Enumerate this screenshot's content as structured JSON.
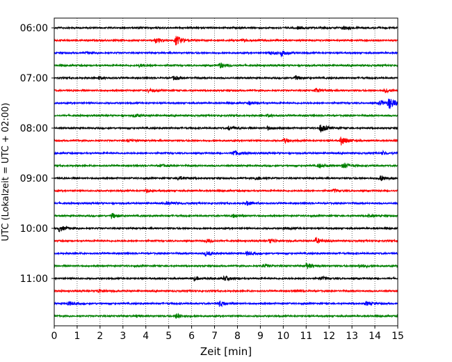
{
  "chart_data": {
    "type": "line",
    "title": "",
    "xlabel": "Zeit  [min]",
    "ylabel": "UTC (Lokalzeit = UTC + 02:00)",
    "xlim": [
      0,
      15
    ],
    "x_ticks": [
      0,
      1,
      2,
      3,
      4,
      5,
      6,
      7,
      8,
      9,
      10,
      11,
      12,
      13,
      14,
      15
    ],
    "y_ticks": [
      "06:00",
      "07:00",
      "08:00",
      "09:00",
      "10:00",
      "11:00"
    ],
    "grid": "vertical dotted",
    "trace_interval_min": 15,
    "trace_colors": [
      "#000000",
      "#ff0000",
      "#0000ff",
      "#008000"
    ],
    "traces": [
      {
        "start": "06:00",
        "events": [
          {
            "t": 12.6,
            "amp": 0.35
          },
          {
            "t": 10.6,
            "amp": 0.2
          }
        ]
      },
      {
        "start": "06:15",
        "events": [
          {
            "t": 5.3,
            "amp": 0.8
          },
          {
            "t": 4.4,
            "amp": 0.4
          },
          {
            "t": 8.2,
            "amp": 0.2
          }
        ]
      },
      {
        "start": "06:30",
        "events": [
          {
            "t": 9.9,
            "amp": 0.45
          },
          {
            "t": 9.4,
            "amp": 0.3
          },
          {
            "t": 1.4,
            "amp": 0.15
          }
        ]
      },
      {
        "start": "06:45",
        "events": [
          {
            "t": 7.2,
            "amp": 0.5
          },
          {
            "t": 3.7,
            "amp": 0.2
          }
        ]
      },
      {
        "start": "07:00",
        "events": [
          {
            "t": 10.5,
            "amp": 0.35
          },
          {
            "t": 5.2,
            "amp": 0.3
          },
          {
            "t": 1.9,
            "amp": 0.25
          }
        ]
      },
      {
        "start": "07:15",
        "events": [
          {
            "t": 11.4,
            "amp": 0.35
          },
          {
            "t": 14.4,
            "amp": 0.35
          },
          {
            "t": 4.1,
            "amp": 0.25
          }
        ]
      },
      {
        "start": "07:30",
        "events": [
          {
            "t": 14.6,
            "amp": 1.0
          },
          {
            "t": 14.2,
            "amp": 0.4
          },
          {
            "t": 8.5,
            "amp": 0.25
          }
        ]
      },
      {
        "start": "07:45",
        "events": [
          {
            "t": 3.5,
            "amp": 0.3
          },
          {
            "t": 9.3,
            "amp": 0.2
          }
        ]
      },
      {
        "start": "08:00",
        "events": [
          {
            "t": 11.6,
            "amp": 0.7
          },
          {
            "t": 7.6,
            "amp": 0.3
          },
          {
            "t": 9.3,
            "amp": 0.25
          }
        ]
      },
      {
        "start": "08:15",
        "events": [
          {
            "t": 12.5,
            "amp": 0.75
          },
          {
            "t": 10.0,
            "amp": 0.35
          },
          {
            "t": 3.2,
            "amp": 0.2
          }
        ]
      },
      {
        "start": "08:30",
        "events": [
          {
            "t": 7.8,
            "amp": 0.45
          },
          {
            "t": 14.3,
            "amp": 0.3
          }
        ]
      },
      {
        "start": "08:45",
        "events": [
          {
            "t": 12.6,
            "amp": 0.55
          },
          {
            "t": 11.5,
            "amp": 0.35
          },
          {
            "t": 4.6,
            "amp": 0.2
          }
        ]
      },
      {
        "start": "09:00",
        "events": [
          {
            "t": 14.2,
            "amp": 0.55
          },
          {
            "t": 8.8,
            "amp": 0.35
          },
          {
            "t": 5.4,
            "amp": 0.3
          }
        ]
      },
      {
        "start": "09:15",
        "events": [
          {
            "t": 4.0,
            "amp": 0.3
          },
          {
            "t": 12.2,
            "amp": 0.2
          }
        ]
      },
      {
        "start": "09:30",
        "events": [
          {
            "t": 8.4,
            "amp": 0.35
          },
          {
            "t": 4.9,
            "amp": 0.25
          }
        ]
      },
      {
        "start": "09:45",
        "events": [
          {
            "t": 2.5,
            "amp": 0.45
          },
          {
            "t": 7.8,
            "amp": 0.3
          },
          {
            "t": 13.7,
            "amp": 0.2
          }
        ]
      },
      {
        "start": "10:00",
        "events": [
          {
            "t": 0.2,
            "amp": 0.5
          },
          {
            "t": 10.0,
            "amp": 0.2
          }
        ]
      },
      {
        "start": "10:15",
        "events": [
          {
            "t": 11.4,
            "amp": 0.45
          },
          {
            "t": 9.4,
            "amp": 0.35
          },
          {
            "t": 6.6,
            "amp": 0.3
          }
        ]
      },
      {
        "start": "10:30",
        "events": [
          {
            "t": 6.6,
            "amp": 0.4
          },
          {
            "t": 8.4,
            "amp": 0.3
          }
        ]
      },
      {
        "start": "10:45",
        "events": [
          {
            "t": 11.0,
            "amp": 0.5
          },
          {
            "t": 13.3,
            "amp": 0.35
          },
          {
            "t": 9.1,
            "amp": 0.25
          }
        ]
      },
      {
        "start": "11:00",
        "events": [
          {
            "t": 7.4,
            "amp": 0.35
          },
          {
            "t": 11.6,
            "amp": 0.3
          },
          {
            "t": 6.1,
            "amp": 0.3
          }
        ]
      },
      {
        "start": "11:15",
        "events": [
          {
            "t": 1.9,
            "amp": 0.3
          },
          {
            "t": 10.6,
            "amp": 0.2
          }
        ]
      },
      {
        "start": "11:30",
        "events": [
          {
            "t": 7.2,
            "amp": 0.45
          },
          {
            "t": 0.6,
            "amp": 0.35
          },
          {
            "t": 13.6,
            "amp": 0.3
          }
        ]
      },
      {
        "start": "11:45",
        "events": [
          {
            "t": 5.3,
            "amp": 0.4
          },
          {
            "t": 3.6,
            "amp": 0.2
          }
        ]
      }
    ]
  }
}
